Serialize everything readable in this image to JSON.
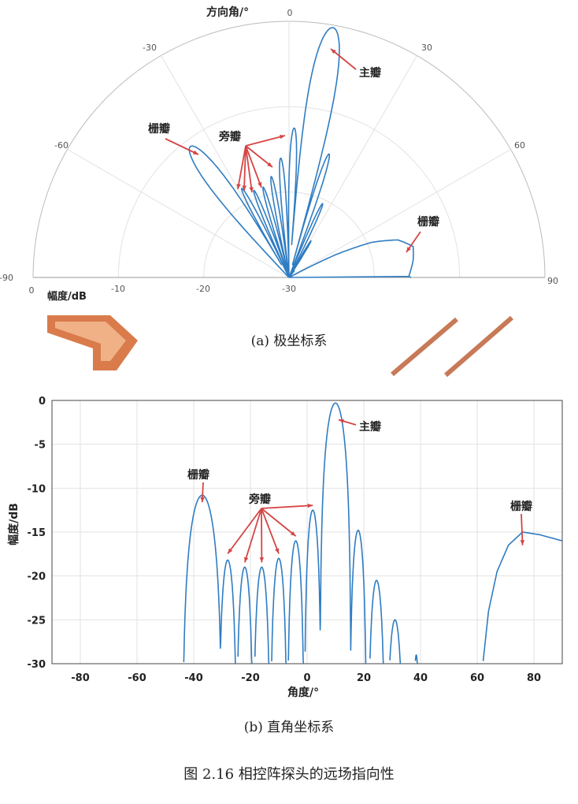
{
  "figure": {
    "caption": "图 2.16 相控阵探头的远场指向性",
    "subcaption_a": "(a) 极坐标系",
    "subcaption_b": "(b) 直角坐标系"
  },
  "chart_data": [
    {
      "type": "line",
      "coordinate_system": "polar",
      "axis_label_angle": "方向角/°",
      "axis_label_radius": "幅度/dB",
      "angle_range": [
        -90,
        90
      ],
      "radius_range": [
        -30,
        0
      ],
      "angle_ticks": [
        "-90",
        "-60",
        "-30",
        "0",
        "30",
        "60",
        "90"
      ],
      "radius_ticks": [
        "0",
        "-10",
        "-20",
        "-30"
      ],
      "grid": true,
      "annotations": [
        {
          "text": "主瓣",
          "target_angle": 10
        },
        {
          "text": "旁瓣",
          "target_angles": [
            -25,
            -20,
            -15,
            -10,
            -4,
            2
          ]
        },
        {
          "text": "栅瓣",
          "target_angle": -37
        },
        {
          "text": "栅瓣",
          "target_angle": 76
        }
      ]
    },
    {
      "type": "line",
      "coordinate_system": "cartesian",
      "xlabel": "角度/°",
      "ylabel": "幅度/dB",
      "xlim": [
        -90,
        90
      ],
      "ylim": [
        -30,
        0
      ],
      "xticks": [
        "-80",
        "-60",
        "-40",
        "-20",
        "0",
        "20",
        "40",
        "60",
        "80"
      ],
      "yticks": [
        "0",
        "-5",
        "-10",
        "-15",
        "-20",
        "-25",
        "-30"
      ],
      "grid": true,
      "lobes": [
        {
          "center": -37,
          "peak": -10.8,
          "halfwidth": 7
        },
        {
          "center": -28,
          "peak": -18.2,
          "halfwidth": 3.2
        },
        {
          "center": -22,
          "peak": -19.0,
          "halfwidth": 3.0
        },
        {
          "center": -16,
          "peak": -19.0,
          "halfwidth": 3.0
        },
        {
          "center": -10,
          "peak": -18.0,
          "halfwidth": 3.0
        },
        {
          "center": -4,
          "peak": -16.0,
          "halfwidth": 3.0
        },
        {
          "center": 2,
          "peak": -12.5,
          "halfwidth": 3.0
        },
        {
          "center": 10,
          "peak": -0.3,
          "halfwidth": 5.5
        },
        {
          "center": 18,
          "peak": -14.8,
          "halfwidth": 3.0
        },
        {
          "center": 24.5,
          "peak": -20.5,
          "halfwidth": 3.0
        },
        {
          "center": 31,
          "peak": -25.0,
          "halfwidth": 3.0
        },
        {
          "center": 38.5,
          "peak": -29.0,
          "halfwidth": 1.2
        }
      ],
      "grating_lobe_tail": [
        {
          "x": 62,
          "y": -30
        },
        {
          "x": 64,
          "y": -24
        },
        {
          "x": 67,
          "y": -19.5
        },
        {
          "x": 71,
          "y": -16.5
        },
        {
          "x": 76,
          "y": -15.0
        },
        {
          "x": 82,
          "y": -15.3
        },
        {
          "x": 90,
          "y": -16.0
        }
      ],
      "annotations": [
        {
          "text": "主瓣",
          "target_x": 10,
          "target_y": -2.5
        },
        {
          "text": "旁瓣",
          "targets": [
            [
              -28,
              -18
            ],
            [
              -22,
              -19
            ],
            [
              -16,
              -19
            ],
            [
              -10,
              -18
            ],
            [
              -4,
              -16
            ],
            [
              2,
              -12.5
            ]
          ]
        },
        {
          "text": "栅瓣",
          "target_x": -37,
          "target_y": -11.5
        },
        {
          "text": "栅瓣",
          "target_x": 76,
          "target_y": -16
        }
      ]
    }
  ],
  "colors": {
    "curve": "#2f7cc2",
    "arrow": "#d64545",
    "grid": "#e2e2e2",
    "axis": "#444444"
  }
}
